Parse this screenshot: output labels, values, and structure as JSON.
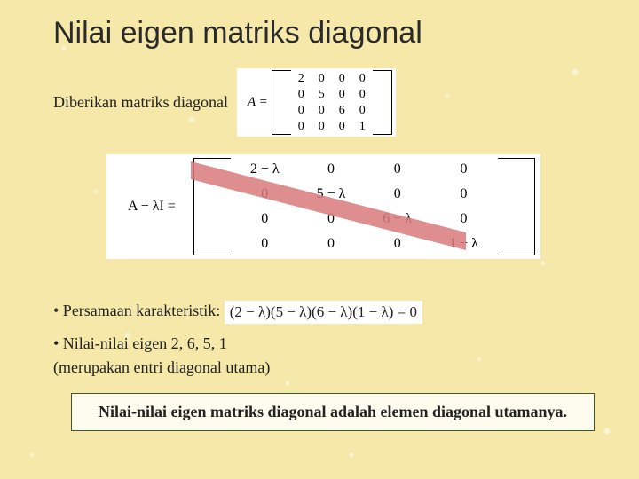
{
  "title": "Nilai eigen matriks diagonal",
  "intro_text": "Diberikan matriks diagonal",
  "matrix_A": {
    "lhs": "A =",
    "rows": [
      [
        "2",
        "0",
        "0",
        "0"
      ],
      [
        "0",
        "5",
        "0",
        "0"
      ],
      [
        "0",
        "0",
        "6",
        "0"
      ],
      [
        "0",
        "0",
        "0",
        "1"
      ]
    ]
  },
  "matrix_AminusLI": {
    "lhs": "A − λI =",
    "rows": [
      [
        "2 − λ",
        "0",
        "0",
        "0"
      ],
      [
        "0",
        "5 − λ",
        "0",
        "0"
      ],
      [
        "0",
        "0",
        "6 − λ",
        "0"
      ],
      [
        "0",
        "0",
        "0",
        "1 − λ"
      ]
    ]
  },
  "char_label": "• Persamaan karakteristik:",
  "char_eq": "(2 − λ)(5 − λ)(6 − λ)(1 − λ) = 0",
  "eigen_label": "• Nilai-nilai eigen   2, 6, 5, 1",
  "eigen_note": "(merupakan entri diagonal utama)",
  "conclusion": "Nilai-nilai eigen matriks diagonal adalah elemen diagonal utamanya.",
  "colors": {
    "background": "#f5e8a8",
    "wedge_fill": "#d87a7a",
    "box_bg": "#fdfcef",
    "box_border": "#3a5a2a"
  }
}
